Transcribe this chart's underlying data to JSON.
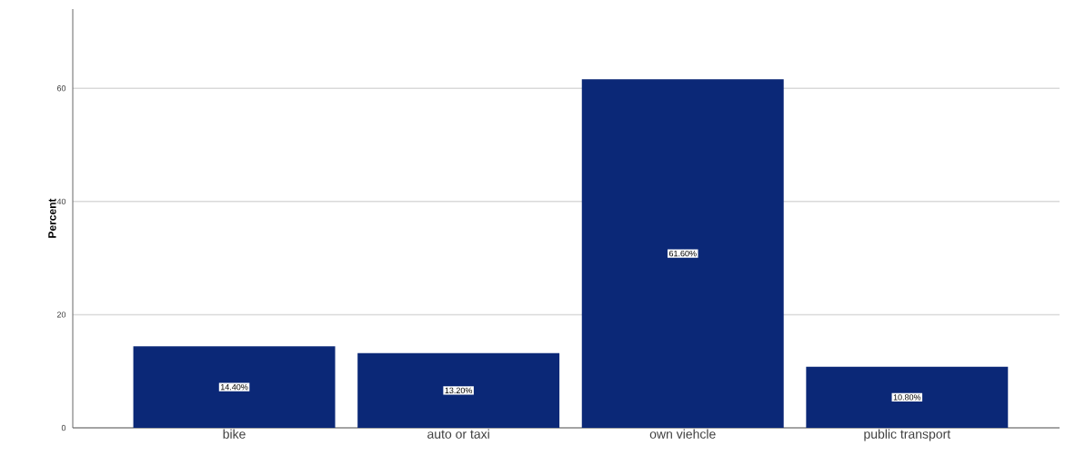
{
  "chart_data": {
    "type": "bar",
    "ylabel": "Percent",
    "categories": [
      "bike",
      "auto or taxi",
      "own viehcle",
      "public transport"
    ],
    "values": [
      14.4,
      13.2,
      61.6,
      10.8
    ],
    "value_labels": [
      "14.40%",
      "13.20%",
      "61.60%",
      "10.80%"
    ],
    "color": "#0b2877",
    "ylim": [
      0,
      74
    ],
    "yticks": [
      0,
      20,
      40,
      60
    ],
    "grid": "y"
  }
}
